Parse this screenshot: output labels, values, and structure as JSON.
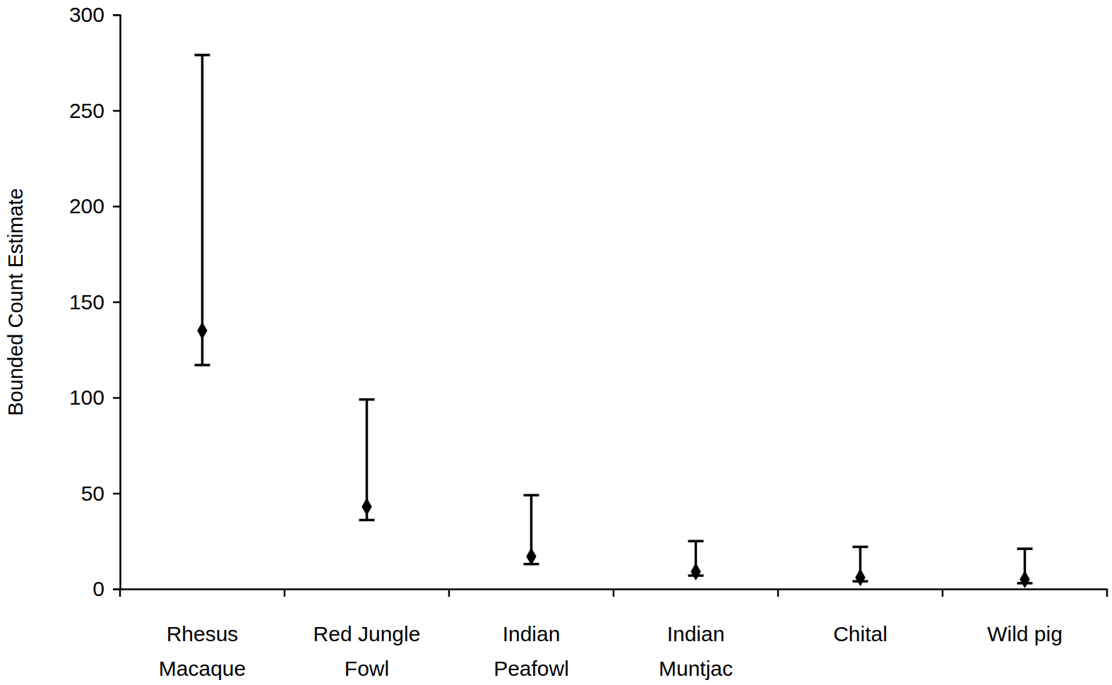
{
  "chart_data": {
    "type": "scatter",
    "y_label": "Bounded Count Estimate",
    "categories": [
      "Rhesus Macaque",
      "Red Jungle Fowl",
      "Indian Peafowl",
      "Indian Muntjac",
      "Chital",
      "Wild pig"
    ],
    "values": [
      135,
      43,
      17,
      9,
      6,
      5
    ],
    "lower": [
      117,
      36,
      13,
      7,
      4,
      3
    ],
    "upper": [
      279,
      99,
      49,
      25,
      22,
      21
    ],
    "color": "#000000",
    "marker": "diamond",
    "ylim": [
      0,
      300
    ],
    "yticks": [
      0,
      50,
      100,
      150,
      200,
      250,
      300
    ],
    "grid": false
  }
}
